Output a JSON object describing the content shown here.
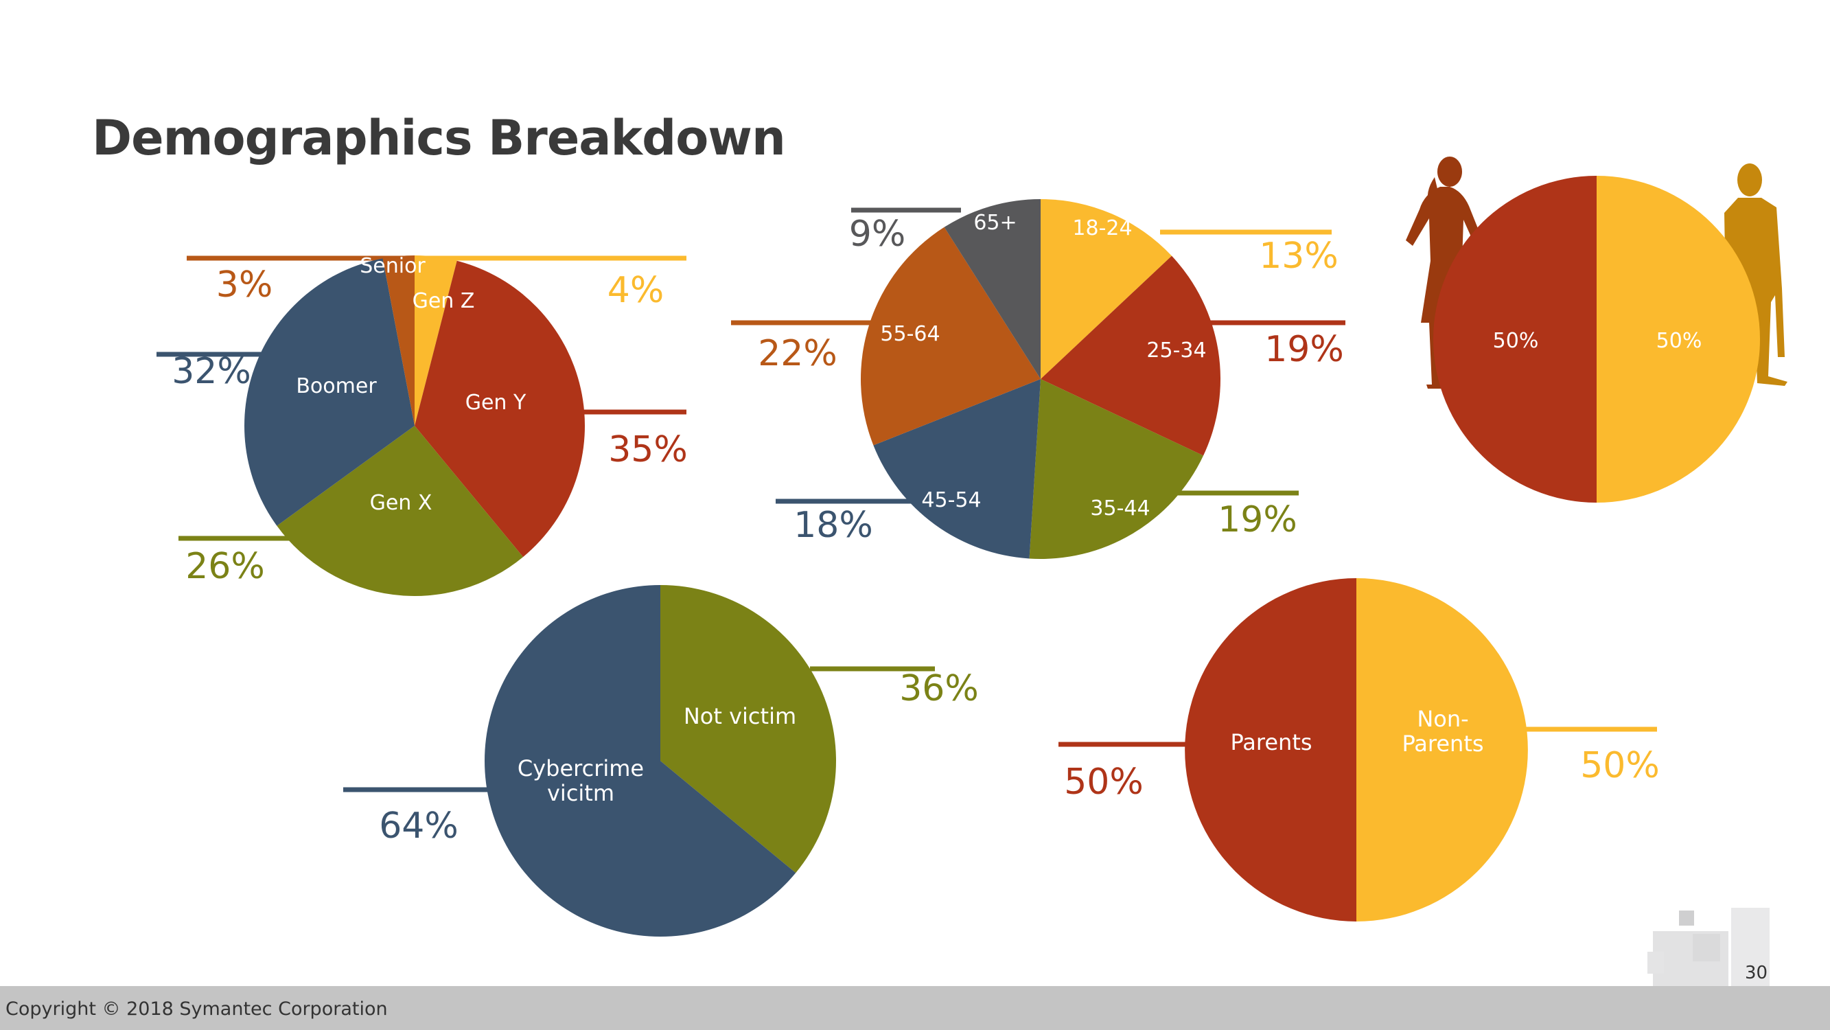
{
  "title": "Demographics Breakdown",
  "footer": {
    "copyright": "Copyright © 2018 Symantec Corporation",
    "page_number": "30"
  },
  "colors": {
    "yellow": "#fbba2e",
    "red": "#af3418",
    "olive": "#7b8216",
    "navy": "#3b546f",
    "orange": "#b85817",
    "gray": "#58585a"
  },
  "chart_data": [
    {
      "type": "pie",
      "categories": [
        "Gen Z",
        "Gen Y",
        "Gen X",
        "Boomer",
        "Senior"
      ],
      "values": [
        4,
        35,
        26,
        32,
        3
      ],
      "value_labels": [
        "4%",
        "35%",
        "26%",
        "32%",
        "3%"
      ],
      "colors": [
        "#fbba2e",
        "#af3418",
        "#7b8216",
        "#3b546f",
        "#b85817"
      ]
    },
    {
      "type": "pie",
      "categories": [
        "18-24",
        "25-34",
        "35-44",
        "45-54",
        "55-64",
        "65+"
      ],
      "values": [
        13,
        19,
        19,
        18,
        22,
        9
      ],
      "value_labels": [
        "13%",
        "19%",
        "19%",
        "18%",
        "22%",
        "9%"
      ],
      "colors": [
        "#fbba2e",
        "#af3418",
        "#7b8216",
        "#3b546f",
        "#b85817",
        "#58585a"
      ]
    },
    {
      "type": "pie",
      "categories": [
        "",
        ""
      ],
      "values": [
        50,
        50
      ],
      "value_labels": [
        "50%",
        "50%"
      ],
      "colors": [
        "#fbba2e",
        "#af3418"
      ]
    },
    {
      "type": "pie",
      "categories": [
        "Not victim",
        "Cybercrime vicitm"
      ],
      "values": [
        36,
        64
      ],
      "value_labels": [
        "36%",
        "64%"
      ],
      "colors": [
        "#7b8216",
        "#3b546f"
      ]
    },
    {
      "type": "pie",
      "categories": [
        "Non-Parents",
        "Parents"
      ],
      "values": [
        50,
        50
      ],
      "value_labels": [
        "50%",
        "50%"
      ],
      "colors": [
        "#fbba2e",
        "#af3418"
      ]
    }
  ]
}
